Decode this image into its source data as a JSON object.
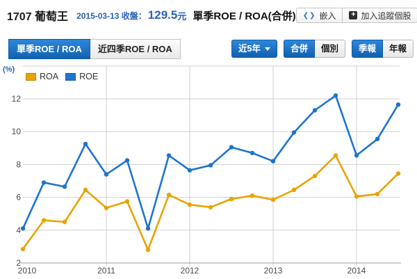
{
  "header": {
    "stock_id": "1707",
    "stock_name": "葡萄王",
    "close_label": "2015-03-13 收盤：",
    "price": "129.5",
    "price_unit": "元",
    "chart_title": "單季ROE / ROA(合併)",
    "embed_button_label": "嵌入",
    "embed_icon_glyph": "❮❯",
    "track_button_label": "加入追蹤個股",
    "plus_icon_glyph": "+"
  },
  "toolbar": {
    "tabs": [
      {
        "label": "單季ROE / ROA",
        "active": true
      },
      {
        "label": "近四季ROE / ROA",
        "active": false
      }
    ],
    "range_dropdown": {
      "label": "近5年",
      "active": true
    },
    "consolidation_toggle": [
      {
        "label": "合併",
        "active": true
      },
      {
        "label": "個別",
        "active": false
      }
    ],
    "period_toggle": [
      {
        "label": "季報",
        "active": true
      },
      {
        "label": "年報",
        "active": false
      }
    ]
  },
  "chart_data": {
    "type": "line",
    "title": "單季ROE / ROA(合併)",
    "unit_label": "(%)",
    "x": [
      "2010Q1",
      "2010Q2",
      "2010Q3",
      "2010Q4",
      "2011Q1",
      "2011Q2",
      "2011Q3",
      "2011Q4",
      "2012Q1",
      "2012Q2",
      "2012Q3",
      "2012Q4",
      "2013Q1",
      "2013Q2",
      "2013Q3",
      "2013Q4",
      "2014Q1",
      "2014Q2",
      "2014Q3"
    ],
    "year_ticks": [
      {
        "label": "2010",
        "index": 0
      },
      {
        "label": "2011",
        "index": 4
      },
      {
        "label": "2012",
        "index": 8
      },
      {
        "label": "2013",
        "index": 12
      },
      {
        "label": "2014",
        "index": 16
      }
    ],
    "series": [
      {
        "name": "ROA",
        "color": "#e8a400",
        "values": [
          2.85,
          4.6,
          4.5,
          6.45,
          5.35,
          5.75,
          2.8,
          6.15,
          5.55,
          5.4,
          5.9,
          6.1,
          5.85,
          6.45,
          7.3,
          8.55,
          6.05,
          6.2,
          7.45
        ]
      },
      {
        "name": "ROE",
        "color": "#1e73d2",
        "values": [
          4.1,
          6.9,
          6.65,
          9.25,
          7.4,
          8.25,
          4.1,
          8.55,
          7.65,
          7.95,
          9.05,
          8.7,
          8.2,
          9.95,
          11.3,
          12.2,
          8.55,
          9.55,
          11.65
        ]
      }
    ],
    "yticks": [
      2,
      4,
      6,
      8,
      10,
      12
    ],
    "ylim": [
      2,
      14
    ],
    "grid": true,
    "legend_position": "top-left",
    "colors": {
      "grid": "#cfcfcf",
      "axis": "#9e9e9e",
      "tick_text": "#4a4a4a"
    }
  }
}
